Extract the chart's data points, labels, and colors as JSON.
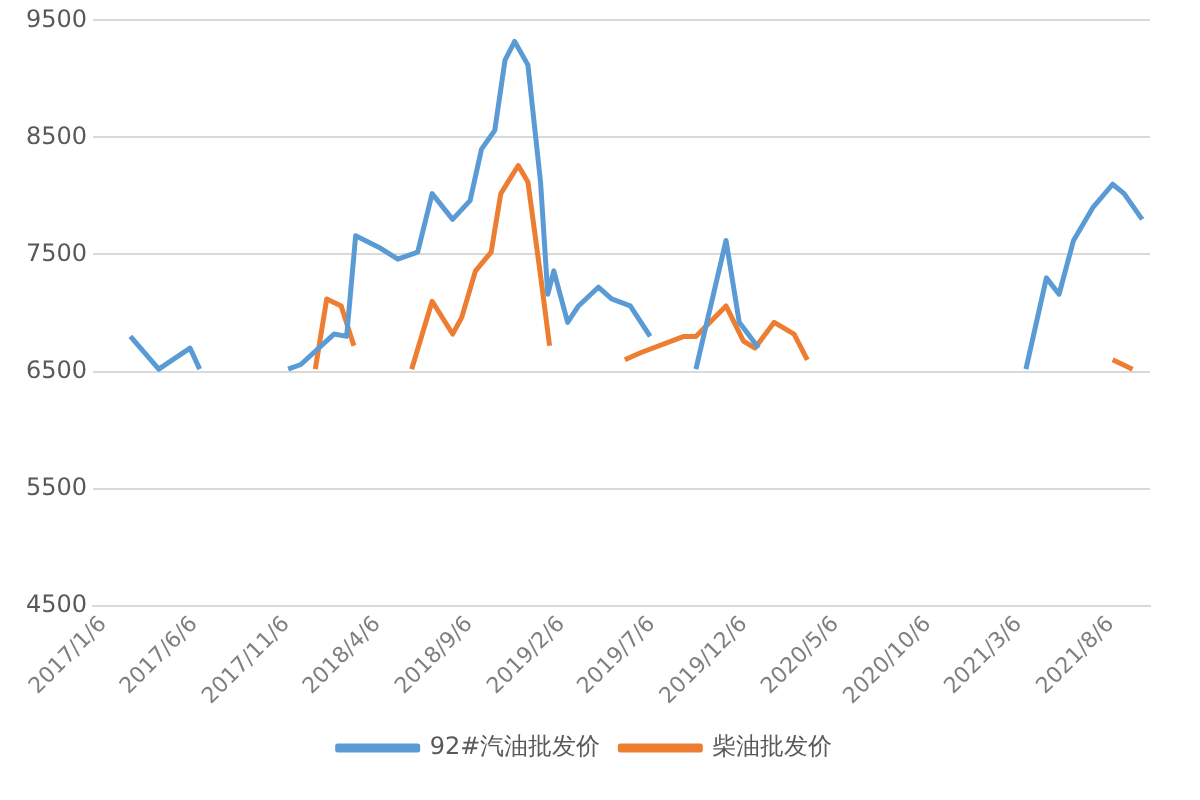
{
  "chart_data": {
    "type": "line",
    "xlim": [
      "2016-12-20",
      "2021-10-10"
    ],
    "xticks": [
      {
        "value": "2017-01-06",
        "label": "2017/1/6"
      },
      {
        "value": "2017-06-06",
        "label": "2017/6/6"
      },
      {
        "value": "2017-11-06",
        "label": "2017/11/6"
      },
      {
        "value": "2018-04-06",
        "label": "2018/4/6"
      },
      {
        "value": "2018-09-06",
        "label": "2018/9/6"
      },
      {
        "value": "2019-02-06",
        "label": "2019/2/6"
      },
      {
        "value": "2019-07-06",
        "label": "2019/7/6"
      },
      {
        "value": "2019-12-06",
        "label": "2019/12/6"
      },
      {
        "value": "2020-05-06",
        "label": "2020/5/6"
      },
      {
        "value": "2020-10-06",
        "label": "2020/10/6"
      },
      {
        "value": "2021-03-06",
        "label": "2021/3/6"
      },
      {
        "value": "2021-08-06",
        "label": "2021/8/6"
      }
    ],
    "ylim": [
      4500,
      9500
    ],
    "yticks": [
      4500,
      5500,
      6500,
      7500,
      8500,
      9500
    ],
    "grid": "y",
    "legend": "bottom",
    "marker": "none",
    "line_style": "solid",
    "series": [
      {
        "name": "92#汽油批发价",
        "color": "#5b9bd5",
        "x": [
          "2017-02-20",
          "2017-04-08",
          "2017-05-30",
          "2017-06-15",
          "2017-08-15",
          "2017-11-09",
          "2017-11-30",
          "2018-01-24",
          "2018-02-14",
          "2018-03-01",
          "2018-04-09",
          "2018-05-10",
          "2018-06-12",
          "2018-07-06",
          "2018-08-09",
          "2018-09-07",
          "2018-09-26",
          "2018-10-18",
          "2018-11-04",
          "2018-11-20",
          "2018-12-12",
          "2019-01-02",
          "2019-01-14",
          "2019-01-24",
          "2019-02-16",
          "2019-03-06",
          "2019-04-08",
          "2019-04-30",
          "2019-05-31",
          "2019-07-03",
          "2019-08-10",
          "2019-09-17",
          "2019-11-06",
          "2019-11-28",
          "2019-12-30",
          "2020-08-01",
          "2021-03-18",
          "2021-04-21",
          "2021-05-12",
          "2021-06-05",
          "2021-07-07",
          "2021-08-09",
          "2021-08-28",
          "2021-09-27"
        ],
        "values": [
          6800,
          6520,
          6700,
          6520,
          null,
          6520,
          6560,
          6820,
          6800,
          7660,
          7560,
          7460,
          7520,
          8020,
          7800,
          7960,
          8400,
          8560,
          9160,
          9320,
          9120,
          8120,
          7160,
          7360,
          6920,
          7060,
          7220,
          7120,
          7060,
          6800,
          null,
          6520,
          7620,
          6920,
          6700,
          null,
          6520,
          7300,
          7160,
          7620,
          7900,
          8100,
          8020,
          7800
        ]
      },
      {
        "name": "柴油批发价",
        "color": "#ed7d31",
        "x": [
          "2017-12-24",
          "2018-01-12",
          "2018-02-05",
          "2018-02-26",
          "2018-04-15",
          "2018-06-02",
          "2018-07-06",
          "2018-08-09",
          "2018-08-24",
          "2018-09-16",
          "2018-10-12",
          "2018-10-28",
          "2018-11-26",
          "2018-12-12",
          "2019-01-02",
          "2019-01-17",
          "2019-03-20",
          "2019-05-22",
          "2019-06-17",
          "2019-08-28",
          "2019-09-17",
          "2019-11-06",
          "2019-12-05",
          "2019-12-24",
          "2020-01-25",
          "2020-02-27",
          "2020-03-20",
          "2020-10-01",
          "2021-08-09",
          "2021-09-11"
        ],
        "values": [
          6520,
          7120,
          7060,
          6720,
          null,
          6520,
          7100,
          6820,
          6960,
          7360,
          7520,
          8020,
          8260,
          8120,
          7320,
          6720,
          null,
          6600,
          6660,
          6800,
          6800,
          7060,
          6760,
          6700,
          6920,
          6820,
          6600,
          null,
          6600,
          6520
        ]
      }
    ]
  }
}
